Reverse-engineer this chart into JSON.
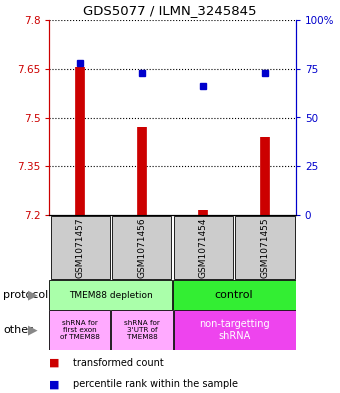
{
  "title": "GDS5077 / ILMN_3245845",
  "samples": [
    "GSM1071457",
    "GSM1071456",
    "GSM1071454",
    "GSM1071455"
  ],
  "red_values": [
    7.655,
    7.47,
    7.215,
    7.44
  ],
  "blue_values": [
    78,
    73,
    66,
    73
  ],
  "ylim_left": [
    7.2,
    7.8
  ],
  "ylim_right": [
    0,
    100
  ],
  "yticks_left": [
    7.2,
    7.35,
    7.5,
    7.65,
    7.8
  ],
  "yticks_right": [
    0,
    25,
    50,
    75,
    100
  ],
  "ytick_labels_left": [
    "7.2",
    "7.35",
    "7.5",
    "7.65",
    "7.8"
  ],
  "ytick_labels_right": [
    "0",
    "25",
    "50",
    "75",
    "100%"
  ],
  "bar_color": "#cc0000",
  "dot_color": "#0000cc",
  "bar_base": 7.2,
  "protocol_colors": [
    "#aaffaa",
    "#33ee33"
  ],
  "other_colors_light": "#ffaaff",
  "other_colors_dark": "#ee44ee",
  "legend_red": "transformed count",
  "legend_blue": "percentile rank within the sample"
}
